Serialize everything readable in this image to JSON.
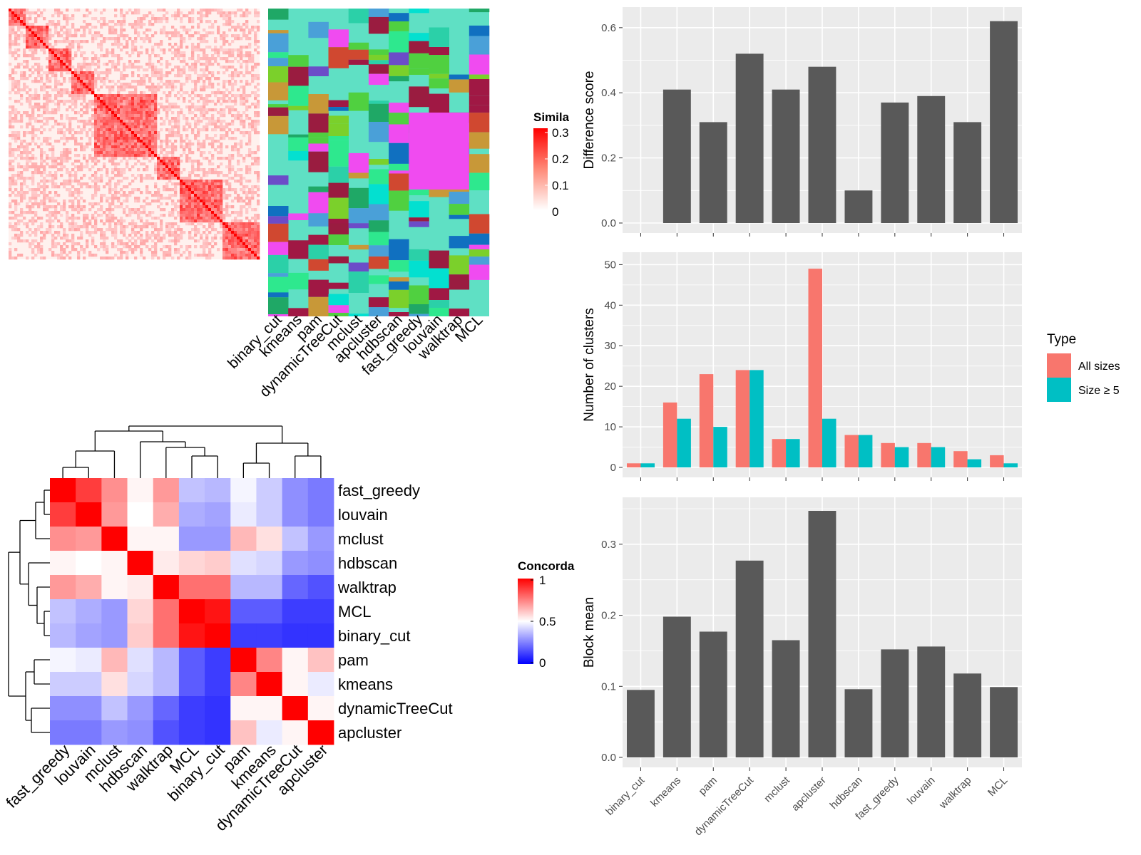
{
  "colors": {
    "bar_dark": "#595959",
    "panel_bg": "#ebebeb",
    "grid": "#ffffff",
    "all_sizes": "#f8766d",
    "size_ge5": "#00bfc4",
    "heat_red": "#ff0000",
    "heat_white": "#ffffff",
    "heat_blue": "#0000ff",
    "class_default": "#5fe0c4"
  },
  "methods": [
    "binary_cut",
    "kmeans",
    "pam",
    "dynamicTreeCut",
    "mclust",
    "apcluster",
    "hdbscan",
    "fast_greedy",
    "louvain",
    "walktrap",
    "MCL"
  ],
  "similarity_legend": {
    "title": "Similarity",
    "ticks": [
      "0.3",
      "0.2",
      "0.1",
      "0"
    ]
  },
  "concordance_legend": {
    "title": "Concordance",
    "ticks": [
      "1",
      "0.5",
      "0"
    ]
  },
  "concordance_heatmap": {
    "order": [
      "fast_greedy",
      "louvain",
      "mclust",
      "hdbscan",
      "walktrap",
      "MCL",
      "binary_cut",
      "pam",
      "kmeans",
      "dynamicTreeCut",
      "apcluster"
    ],
    "matrix": [
      [
        1.0,
        0.88,
        0.72,
        0.52,
        0.7,
        0.38,
        0.36,
        0.48,
        0.4,
        0.28,
        0.24
      ],
      [
        0.88,
        1.0,
        0.7,
        0.5,
        0.66,
        0.34,
        0.32,
        0.46,
        0.4,
        0.28,
        0.24
      ],
      [
        0.72,
        0.7,
        1.0,
        0.52,
        0.52,
        0.3,
        0.3,
        0.64,
        0.56,
        0.38,
        0.3
      ],
      [
        0.52,
        0.5,
        0.52,
        1.0,
        0.54,
        0.58,
        0.6,
        0.44,
        0.42,
        0.3,
        0.28
      ],
      [
        0.7,
        0.66,
        0.52,
        0.54,
        1.0,
        0.78,
        0.78,
        0.36,
        0.36,
        0.2,
        0.16
      ],
      [
        0.38,
        0.34,
        0.3,
        0.58,
        0.78,
        1.0,
        0.96,
        0.18,
        0.18,
        0.12,
        0.12
      ],
      [
        0.36,
        0.32,
        0.3,
        0.6,
        0.78,
        0.96,
        1.0,
        0.12,
        0.12,
        0.1,
        0.1
      ],
      [
        0.48,
        0.46,
        0.64,
        0.44,
        0.36,
        0.18,
        0.12,
        1.0,
        0.74,
        0.52,
        0.62
      ],
      [
        0.4,
        0.4,
        0.56,
        0.42,
        0.36,
        0.18,
        0.12,
        0.74,
        1.0,
        0.52,
        0.46
      ],
      [
        0.28,
        0.28,
        0.38,
        0.3,
        0.2,
        0.12,
        0.1,
        0.52,
        0.52,
        1.0,
        0.52
      ],
      [
        0.24,
        0.24,
        0.3,
        0.28,
        0.16,
        0.12,
        0.1,
        0.62,
        0.46,
        0.52,
        1.0
      ]
    ]
  },
  "chart_data": [
    {
      "type": "bar",
      "categories": [
        "binary_cut",
        "kmeans",
        "pam",
        "dynamicTreeCut",
        "mclust",
        "apcluster",
        "hdbscan",
        "fast_greedy",
        "louvain",
        "walktrap",
        "MCL"
      ],
      "values": [
        0.0,
        0.41,
        0.31,
        0.52,
        0.41,
        0.48,
        0.1,
        0.37,
        0.39,
        0.31,
        0.62
      ],
      "ylabel": "Difference score",
      "ylim": [
        0,
        0.65
      ],
      "yticks": [
        "0.0",
        "0.2",
        "0.4",
        "0.6"
      ]
    },
    {
      "type": "bar",
      "categories": [
        "binary_cut",
        "kmeans",
        "pam",
        "dynamicTreeCut",
        "mclust",
        "apcluster",
        "hdbscan",
        "fast_greedy",
        "louvain",
        "walktrap",
        "MCL"
      ],
      "series": [
        {
          "name": "All sizes",
          "values": [
            1,
            16,
            23,
            24,
            7,
            49,
            8,
            6,
            6,
            4,
            3
          ]
        },
        {
          "name": "Size ≥ 5",
          "values": [
            1,
            12,
            10,
            24,
            7,
            12,
            8,
            5,
            5,
            2,
            1
          ]
        }
      ],
      "ylabel": "Number of clusters",
      "ylim": [
        0,
        52
      ],
      "yticks": [
        "0",
        "10",
        "20",
        "30",
        "40",
        "50"
      ],
      "legend_title": "Type",
      "legend_position": "right"
    },
    {
      "type": "bar",
      "categories": [
        "binary_cut",
        "kmeans",
        "pam",
        "dynamicTreeCut",
        "mclust",
        "apcluster",
        "hdbscan",
        "fast_greedy",
        "louvain",
        "walktrap",
        "MCL"
      ],
      "values": [
        0.095,
        0.198,
        0.177,
        0.277,
        0.165,
        0.347,
        0.096,
        0.152,
        0.156,
        0.118,
        0.099
      ],
      "ylabel": "Block mean",
      "ylim": [
        0,
        0.36
      ],
      "yticks": [
        "0.0",
        "0.1",
        "0.2",
        "0.3"
      ]
    }
  ]
}
